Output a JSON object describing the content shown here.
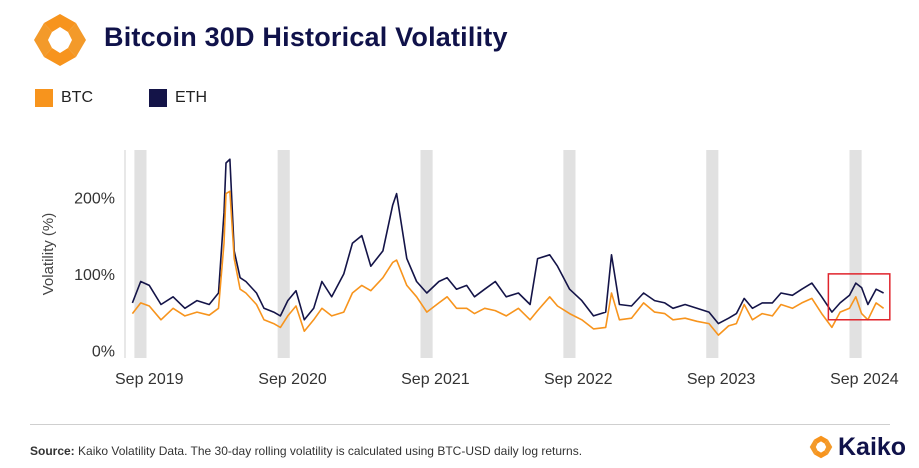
{
  "header": {
    "title": "Bitcoin 30D Historical Volatility"
  },
  "footer": {
    "source_label": "Source:",
    "source_text": " Kaiko Volatility Data. The 30-day rolling volatility is calculated using BTC-USD daily log returns.",
    "brand_name": "Kaiko"
  },
  "colors": {
    "btc": "#f7941d",
    "eth": "#141448",
    "highlight": "#e0242c",
    "shade": "#e1e1e1",
    "brand_orange": "#f7941d"
  },
  "chart_data": {
    "type": "line",
    "title": "",
    "xlabel": "",
    "ylabel": "Volatility (%)",
    "yticks": [
      0,
      100,
      200
    ],
    "ytick_labels": [
      "0%",
      "100%",
      "200%"
    ],
    "ylim": [
      -10,
      262
    ],
    "xlim": [
      "2019-07-01",
      "2024-12-01"
    ],
    "xticks": [
      "2019-09-01",
      "2020-09-01",
      "2021-09-01",
      "2022-09-01",
      "2023-09-01",
      "2024-09-01"
    ],
    "xtick_labels": [
      "Sep 2019",
      "Sep 2020",
      "Sep 2021",
      "Sep 2022",
      "Sep 2023",
      "Sep 2024"
    ],
    "legend_position": "top-left",
    "grid": false,
    "shaded_periods": [
      [
        "2019-07-25",
        "2019-08-25"
      ],
      [
        "2020-07-25",
        "2020-08-25"
      ],
      [
        "2021-07-25",
        "2021-08-25"
      ],
      [
        "2022-07-25",
        "2022-08-25"
      ],
      [
        "2023-07-25",
        "2023-08-25"
      ],
      [
        "2024-07-25",
        "2024-08-25"
      ]
    ],
    "highlight_box": {
      "x": [
        "2024-06-01",
        "2024-11-05"
      ],
      "y": [
        40,
        100
      ]
    },
    "series": [
      {
        "name": "BTC",
        "color": "#f7941d",
        "x": [
          "2019-07-20",
          "2019-08-10",
          "2019-09-01",
          "2019-10-01",
          "2019-11-01",
          "2019-12-01",
          "2020-01-01",
          "2020-02-01",
          "2020-02-25",
          "2020-03-10",
          "2020-03-15",
          "2020-03-25",
          "2020-04-05",
          "2020-04-20",
          "2020-05-05",
          "2020-06-01",
          "2020-06-20",
          "2020-07-15",
          "2020-08-01",
          "2020-08-20",
          "2020-09-10",
          "2020-10-01",
          "2020-10-25",
          "2020-11-15",
          "2020-12-10",
          "2021-01-10",
          "2021-02-01",
          "2021-02-25",
          "2021-03-20",
          "2021-04-20",
          "2021-05-15",
          "2021-05-25",
          "2021-06-20",
          "2021-07-15",
          "2021-08-10",
          "2021-09-10",
          "2021-10-01",
          "2021-10-25",
          "2021-11-20",
          "2021-12-10",
          "2022-01-05",
          "2022-02-01",
          "2022-03-01",
          "2022-04-01",
          "2022-05-01",
          "2022-05-20",
          "2022-06-20",
          "2022-07-10",
          "2022-08-10",
          "2022-09-10",
          "2022-10-10",
          "2022-11-10",
          "2022-11-25",
          "2022-12-15",
          "2023-01-15",
          "2023-02-15",
          "2023-03-15",
          "2023-04-10",
          "2023-05-01",
          "2023-06-01",
          "2023-07-01",
          "2023-08-01",
          "2023-08-25",
          "2023-09-20",
          "2023-10-10",
          "2023-10-30",
          "2023-11-20",
          "2023-12-15",
          "2024-01-10",
          "2024-02-01",
          "2024-03-01",
          "2024-03-25",
          "2024-04-20",
          "2024-05-15",
          "2024-06-10",
          "2024-07-01",
          "2024-07-25",
          "2024-08-10",
          "2024-08-25",
          "2024-09-10",
          "2024-10-01",
          "2024-10-20"
        ],
        "values": [
          48,
          62,
          58,
          40,
          55,
          45,
          50,
          46,
          55,
          140,
          205,
          208,
          120,
          80,
          75,
          60,
          40,
          35,
          30,
          45,
          58,
          25,
          40,
          55,
          45,
          50,
          75,
          85,
          78,
          95,
          115,
          118,
          85,
          70,
          50,
          62,
          70,
          55,
          55,
          48,
          55,
          52,
          45,
          55,
          40,
          52,
          70,
          58,
          48,
          40,
          28,
          30,
          75,
          40,
          42,
          62,
          50,
          48,
          40,
          42,
          38,
          35,
          20,
          32,
          35,
          60,
          40,
          48,
          45,
          60,
          55,
          62,
          68,
          48,
          30,
          50,
          55,
          70,
          48,
          40,
          62,
          55
        ]
      },
      {
        "name": "ETH",
        "color": "#141448",
        "x": [
          "2019-07-20",
          "2019-08-10",
          "2019-09-01",
          "2019-10-01",
          "2019-11-01",
          "2019-12-01",
          "2020-01-01",
          "2020-02-01",
          "2020-02-25",
          "2020-03-10",
          "2020-03-15",
          "2020-03-25",
          "2020-04-05",
          "2020-04-20",
          "2020-05-05",
          "2020-06-01",
          "2020-06-20",
          "2020-07-15",
          "2020-08-01",
          "2020-08-20",
          "2020-09-10",
          "2020-10-01",
          "2020-10-25",
          "2020-11-15",
          "2020-12-10",
          "2021-01-10",
          "2021-02-01",
          "2021-02-25",
          "2021-03-20",
          "2021-04-20",
          "2021-05-15",
          "2021-05-25",
          "2021-06-20",
          "2021-07-15",
          "2021-08-10",
          "2021-09-10",
          "2021-10-01",
          "2021-10-25",
          "2021-11-20",
          "2021-12-10",
          "2022-01-05",
          "2022-02-01",
          "2022-03-01",
          "2022-04-01",
          "2022-05-01",
          "2022-05-20",
          "2022-06-20",
          "2022-07-10",
          "2022-08-10",
          "2022-09-10",
          "2022-10-10",
          "2022-11-10",
          "2022-11-25",
          "2022-12-15",
          "2023-01-15",
          "2023-02-15",
          "2023-03-15",
          "2023-04-10",
          "2023-05-01",
          "2023-06-01",
          "2023-07-01",
          "2023-08-01",
          "2023-08-25",
          "2023-09-20",
          "2023-10-10",
          "2023-10-30",
          "2023-11-20",
          "2023-12-15",
          "2024-01-10",
          "2024-02-01",
          "2024-03-01",
          "2024-03-25",
          "2024-04-20",
          "2024-05-15",
          "2024-06-10",
          "2024-07-01",
          "2024-07-25",
          "2024-08-10",
          "2024-08-25",
          "2024-09-10",
          "2024-10-01",
          "2024-10-20"
        ],
        "values": [
          62,
          90,
          85,
          60,
          70,
          55,
          65,
          60,
          75,
          180,
          245,
          250,
          130,
          95,
          90,
          75,
          55,
          50,
          45,
          65,
          78,
          40,
          55,
          90,
          70,
          100,
          140,
          150,
          110,
          130,
          190,
          205,
          120,
          90,
          75,
          90,
          95,
          80,
          85,
          70,
          80,
          90,
          70,
          75,
          60,
          120,
          125,
          110,
          80,
          65,
          45,
          50,
          125,
          60,
          58,
          75,
          65,
          62,
          55,
          60,
          55,
          50,
          35,
          42,
          48,
          68,
          55,
          62,
          62,
          75,
          72,
          80,
          88,
          70,
          50,
          62,
          72,
          88,
          82,
          60,
          80,
          75
        ]
      }
    ]
  }
}
